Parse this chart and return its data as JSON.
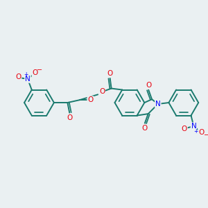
{
  "background_color": "#eaf0f2",
  "bond_color": "#1a7a6e",
  "O_color": "#e8000d",
  "N_color": "#0000ff",
  "figsize": [
    3.0,
    3.0
  ],
  "dpi": 100,
  "xlim": [
    0,
    300
  ],
  "ylim": [
    0,
    300
  ]
}
